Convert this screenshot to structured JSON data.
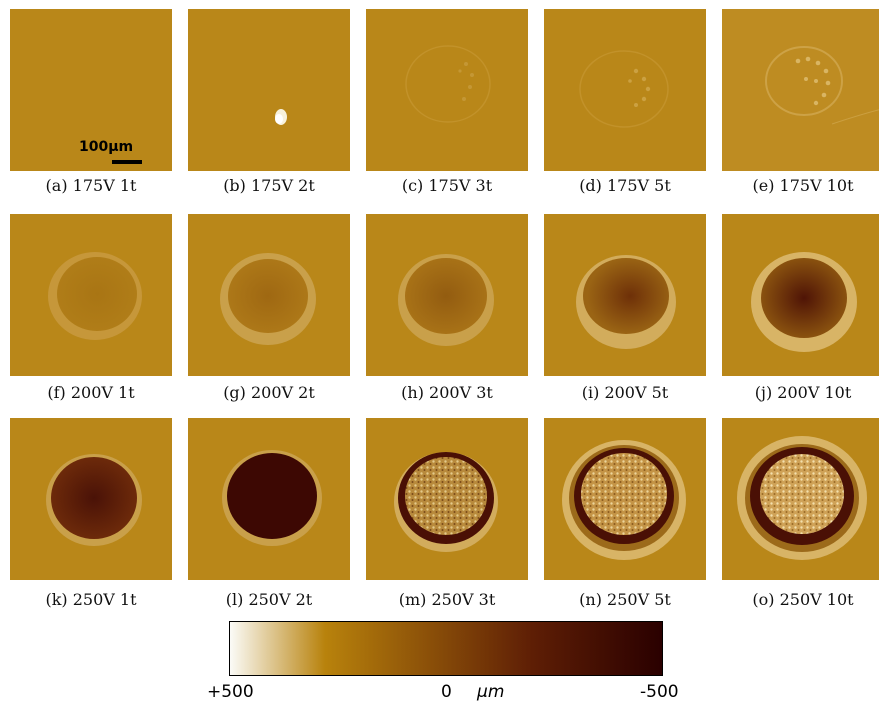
{
  "panels": [
    {
      "caption": "(a) 175V 1t"
    },
    {
      "caption": "(b) 175V 2t"
    },
    {
      "caption": "(c) 175V 3t"
    },
    {
      "caption": "(d) 175V 5t"
    },
    {
      "caption": "(e) 175V 10t"
    },
    {
      "caption": "(f) 200V 1t"
    },
    {
      "caption": "(g) 200V 2t"
    },
    {
      "caption": "(h) 200V 3t"
    },
    {
      "caption": "(i) 200V 5t"
    },
    {
      "caption": "(j) 200V 10t"
    },
    {
      "caption": "(k) 250V 1t"
    },
    {
      "caption": "(l) 250V 2t"
    },
    {
      "caption": "(m) 250V 3t"
    },
    {
      "caption": "(n) 250V 5t"
    },
    {
      "caption": "(o) 250V 10t"
    }
  ],
  "scale_bar": {
    "label": "100μm"
  },
  "colorbar": {
    "min_label": "+500",
    "mid_label": "0",
    "max_label": "-500",
    "unit": "μm",
    "colors": [
      "#fbfbf7",
      "#b8820c",
      "#5e1e05",
      "#2a0000"
    ]
  }
}
